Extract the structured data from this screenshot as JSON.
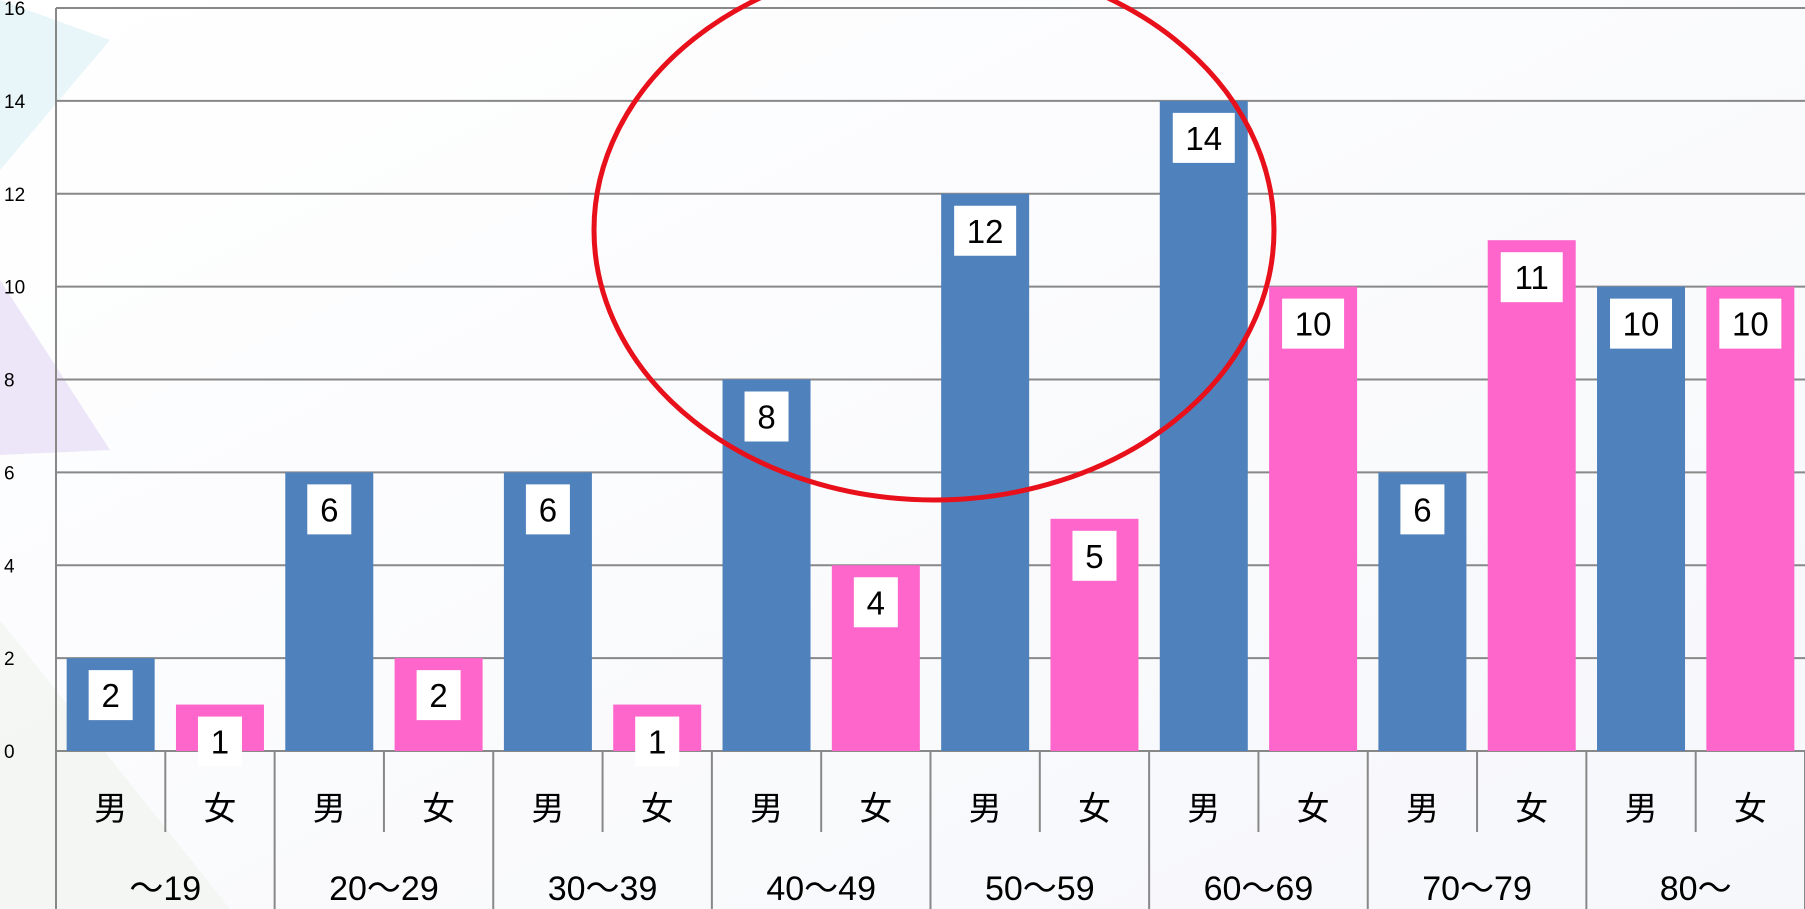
{
  "chart_data": {
    "type": "bar",
    "ylim": [
      0,
      16
    ],
    "yticks": [
      0,
      2,
      4,
      6,
      8,
      10,
      12,
      14,
      16
    ],
    "grid": true,
    "groups": [
      "〜19",
      "20〜29",
      "30〜39",
      "40〜49",
      "50〜59",
      "60〜69",
      "70〜79",
      "80〜"
    ],
    "subcategories": [
      "男",
      "女"
    ],
    "categories": [
      "男",
      "女",
      "男",
      "女",
      "男",
      "女",
      "男",
      "女",
      "男",
      "女",
      "男",
      "女",
      "男",
      "女",
      "男",
      "女"
    ],
    "values": [
      2,
      1,
      6,
      2,
      6,
      1,
      8,
      4,
      12,
      5,
      14,
      10,
      6,
      11,
      10,
      10
    ],
    "annotation": "red ellipse highlighting 男 40〜49 through 男 60〜69"
  },
  "colors": {
    "male": "#4f81bd",
    "female": "#ff66cc",
    "grid": "#888888",
    "annotation": "#e8101a",
    "label_box": "#ffffff"
  }
}
